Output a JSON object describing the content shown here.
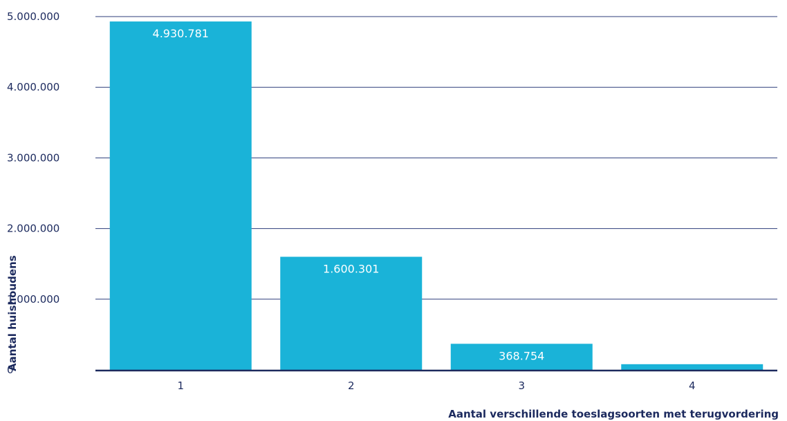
{
  "chart_data": {
    "type": "bar",
    "categories": [
      "1",
      "2",
      "3",
      "4"
    ],
    "values": [
      4930781,
      1600301,
      368754,
      80000
    ],
    "data_labels": [
      "4.930.781",
      "1.600.301",
      "368.754",
      ""
    ],
    "ylim": [
      0,
      5000000
    ],
    "yticks": [
      0,
      1000000,
      2000000,
      3000000,
      4000000,
      5000000
    ],
    "ytick_labels": [
      "0",
      "1.000.000",
      "2.000.000",
      "3.000.000",
      "4.000.000",
      "5.000.000"
    ],
    "xlabel": "Aantal verschillende toeslagsoorten met terugvordering",
    "ylabel": "Aantal huishoudens",
    "grid": true,
    "colors": {
      "bar": "#1ab3d8",
      "grid": "#2c3c7a",
      "axis": "#1c2a5e",
      "text": "#1c2a5e"
    }
  }
}
